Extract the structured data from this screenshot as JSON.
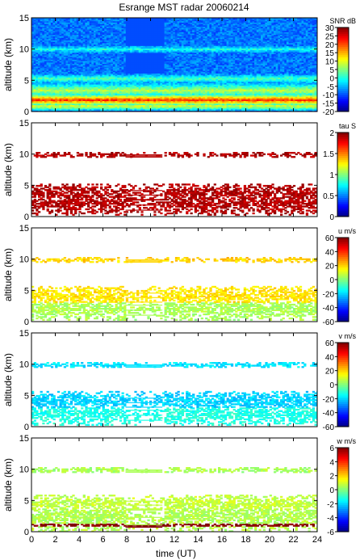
{
  "title": "Esrange MST radar 20060214",
  "xaxis": {
    "label": "time (UT)",
    "range": [
      0,
      24
    ],
    "ticks": [
      0,
      2,
      4,
      6,
      8,
      10,
      12,
      14,
      16,
      18,
      20,
      22,
      24
    ]
  },
  "chart_data": [
    {
      "type": "heatmap",
      "title": "Esrange MST radar 20060214",
      "ylabel": "altitude (km)",
      "ylim": [
        0,
        15
      ],
      "yticks": [
        0,
        5,
        10,
        15
      ],
      "xlabel": "time (UT)",
      "xlim": [
        0,
        24
      ],
      "colorbar": {
        "label": "SNR dB",
        "range": [
          -20,
          30
        ],
        "ticks": [
          -20,
          -15,
          -10,
          -5,
          0,
          5,
          10,
          15,
          20,
          25,
          30
        ]
      },
      "layers": [
        {
          "alt": 0.8,
          "width": 0.8,
          "value": 10
        },
        {
          "alt": 1.8,
          "width": 1.2,
          "value": 22
        },
        {
          "alt": 3.3,
          "width": 1.4,
          "value": 8
        },
        {
          "alt": 5.2,
          "width": 0.8,
          "value": 3
        },
        {
          "alt": 9.9,
          "width": 0.6,
          "value": 0
        }
      ],
      "background_value": -8,
      "gaps_x": [
        [
          7.9,
          11.0
        ]
      ]
    },
    {
      "type": "heatmap",
      "ylabel": "altitude (km)",
      "ylim": [
        0,
        15
      ],
      "yticks": [
        0,
        5,
        10,
        15
      ],
      "xlabel": "time (UT)",
      "xlim": [
        0,
        24
      ],
      "colorbar": {
        "label": "tau S",
        "range": [
          0,
          2
        ],
        "ticks": [
          0,
          0.5,
          1,
          1.5,
          2
        ]
      },
      "layers": [
        {
          "alt": 2.0,
          "width": 1.8,
          "value": 1.9
        },
        {
          "alt": 3.6,
          "width": 1.6,
          "value": 1.9
        },
        {
          "alt": 9.8,
          "width": 0.4,
          "value": 1.9
        }
      ],
      "gaps_x": [
        [
          7.9,
          11.0
        ]
      ]
    },
    {
      "type": "heatmap",
      "ylabel": "altitude (km)",
      "ylim": [
        0,
        15
      ],
      "yticks": [
        0,
        5,
        10,
        15
      ],
      "xlabel": "time (UT)",
      "xlim": [
        0,
        24
      ],
      "colorbar": {
        "label": "u m/s",
        "range": [
          -60,
          60
        ],
        "ticks": [
          -60,
          -40,
          -20,
          0,
          20,
          40,
          60
        ]
      },
      "layers": [
        {
          "alt": 2.0,
          "width": 1.8,
          "value": 5
        },
        {
          "alt": 4.0,
          "width": 1.6,
          "value": 18
        },
        {
          "alt": 9.8,
          "width": 0.4,
          "value": 20
        }
      ],
      "gaps_x": [
        [
          7.9,
          11.0
        ]
      ]
    },
    {
      "type": "heatmap",
      "ylabel": "altitude (km)",
      "ylim": [
        0,
        15
      ],
      "yticks": [
        0,
        5,
        10,
        15
      ],
      "xlabel": "time (UT)",
      "xlim": [
        0,
        24
      ],
      "colorbar": {
        "label": "v m/s",
        "range": [
          -60,
          60
        ],
        "ticks": [
          -60,
          -40,
          -20,
          0,
          20,
          40,
          60
        ]
      },
      "layers": [
        {
          "alt": 2.0,
          "width": 1.8,
          "value": -12
        },
        {
          "alt": 4.0,
          "width": 1.6,
          "value": -20
        },
        {
          "alt": 9.8,
          "width": 0.4,
          "value": -18
        }
      ],
      "gaps_x": [
        [
          7.9,
          11.0
        ]
      ]
    },
    {
      "type": "heatmap",
      "ylabel": "altitude (km)",
      "ylim": [
        0,
        15
      ],
      "yticks": [
        0,
        5,
        10,
        15
      ],
      "xlabel": "time (UT)",
      "xlim": [
        0,
        24
      ],
      "colorbar": {
        "label": "w m/s",
        "range": [
          -6,
          6
        ],
        "ticks": [
          -6,
          -4,
          -2,
          0,
          2,
          4,
          6
        ]
      },
      "layers": [
        {
          "alt": 1.0,
          "width": 0.4,
          "value": 6
        },
        {
          "alt": 2.5,
          "width": 2.6,
          "value": 0.6
        },
        {
          "alt": 4.4,
          "width": 1.4,
          "value": 0.8
        },
        {
          "alt": 9.8,
          "width": 0.4,
          "value": 0.5
        }
      ],
      "gaps_x": [
        [
          7.9,
          11.0
        ]
      ]
    }
  ]
}
